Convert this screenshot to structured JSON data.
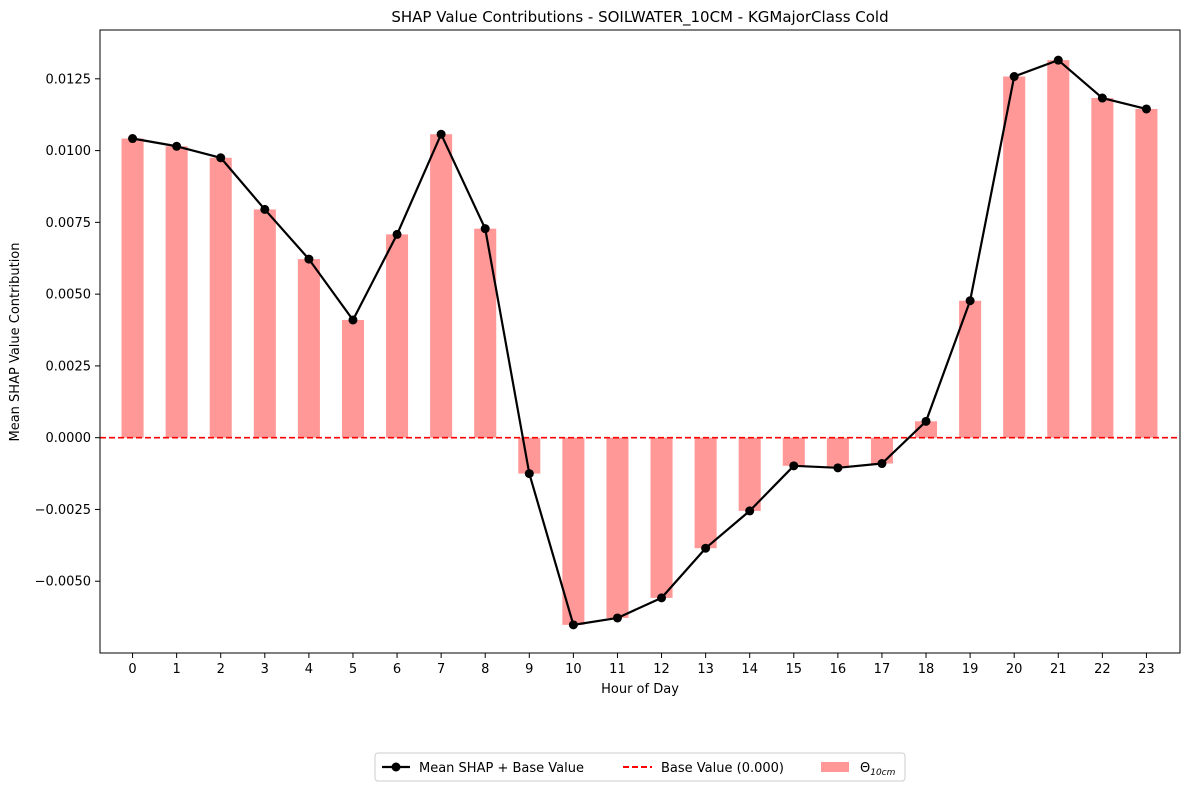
{
  "chart_data": {
    "type": "bar",
    "title": "SHAP Value Contributions - SOILWATER_10CM - KGMajorClass Cold",
    "xlabel": "Hour of Day",
    "ylabel": "Mean SHAP Value Contribution",
    "categories": [
      "0",
      "1",
      "2",
      "3",
      "4",
      "5",
      "6",
      "7",
      "8",
      "9",
      "10",
      "11",
      "12",
      "13",
      "14",
      "15",
      "16",
      "17",
      "18",
      "19",
      "20",
      "21",
      "22",
      "23"
    ],
    "ylim": [
      -0.0075,
      0.0142
    ],
    "yticks": [
      "0.0125",
      "0.0100",
      "0.0075",
      "0.0050",
      "0.0025",
      "0.0000",
      "−0.0025",
      "−0.0050"
    ],
    "ytick_values": [
      0.0125,
      0.01,
      0.0075,
      0.005,
      0.0025,
      0.0,
      -0.0025,
      -0.005
    ],
    "grid": false,
    "legend_position": "bottom-center",
    "series": [
      {
        "name": "Θ10cm",
        "kind": "bar",
        "color": "#ff9896",
        "values": [
          0.01042,
          0.01015,
          0.00975,
          0.00795,
          0.00622,
          0.0041,
          0.00708,
          0.01057,
          0.00728,
          -0.00125,
          -0.00652,
          -0.00628,
          -0.00558,
          -0.00385,
          -0.00255,
          -0.00098,
          -0.00105,
          -0.0009,
          0.00057,
          0.00477,
          0.01258,
          0.01315,
          0.01183,
          0.01145
        ]
      },
      {
        "name": "Mean SHAP + Base Value",
        "kind": "line",
        "color": "#000000",
        "values": [
          0.01042,
          0.01015,
          0.00975,
          0.00795,
          0.00622,
          0.0041,
          0.00708,
          0.01057,
          0.00728,
          -0.00125,
          -0.00652,
          -0.00628,
          -0.00558,
          -0.00385,
          -0.00255,
          -0.00098,
          -0.00105,
          -0.0009,
          0.00057,
          0.00477,
          0.01258,
          0.01315,
          0.01183,
          0.01145
        ]
      },
      {
        "name": "Base Value (0.000)",
        "kind": "hline",
        "color": "#ff0000",
        "value": 0.0
      }
    ],
    "legend": {
      "line_label": "Mean SHAP + Base Value",
      "base_label": "Base Value (0.000)",
      "bar_label_main": "Θ",
      "bar_label_sub": "10cm"
    }
  }
}
